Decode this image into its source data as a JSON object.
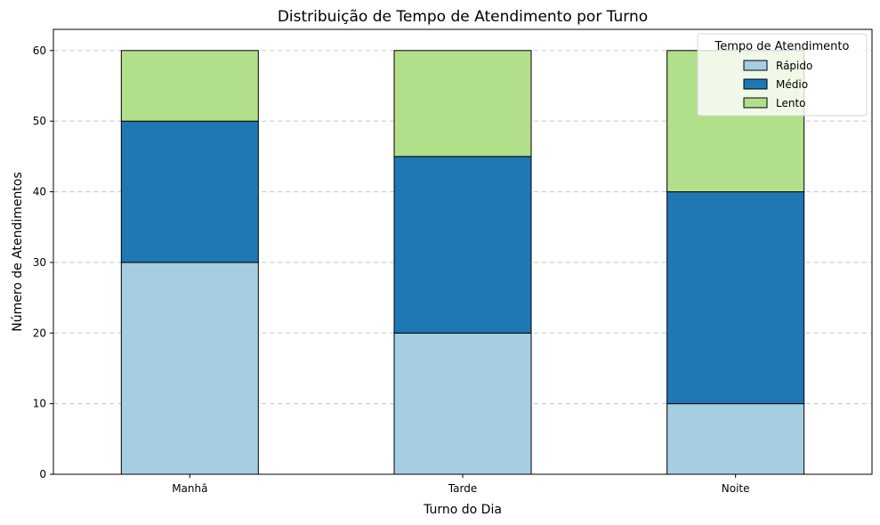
{
  "chart_data": {
    "type": "bar",
    "stacked": true,
    "title": "Distribuição de Tempo de Atendimento por Turno",
    "xlabel": "Turno do Dia",
    "ylabel": "Número de Atendimentos",
    "categories": [
      "Manhã",
      "Tarde",
      "Noite"
    ],
    "series": [
      {
        "name": "Rápido",
        "values": [
          30,
          20,
          10
        ],
        "color": "#a6cee3"
      },
      {
        "name": "Médio",
        "values": [
          20,
          25,
          30
        ],
        "color": "#1f78b4"
      },
      {
        "name": "Lento",
        "values": [
          10,
          15,
          20
        ],
        "color": "#b2df8a"
      }
    ],
    "ylim": [
      0,
      63
    ],
    "yticks": [
      0,
      10,
      20,
      30,
      40,
      50,
      60
    ],
    "grid": "y-dashed",
    "legend": {
      "title": "Tempo de Atendimento",
      "placement": "top-right"
    }
  }
}
